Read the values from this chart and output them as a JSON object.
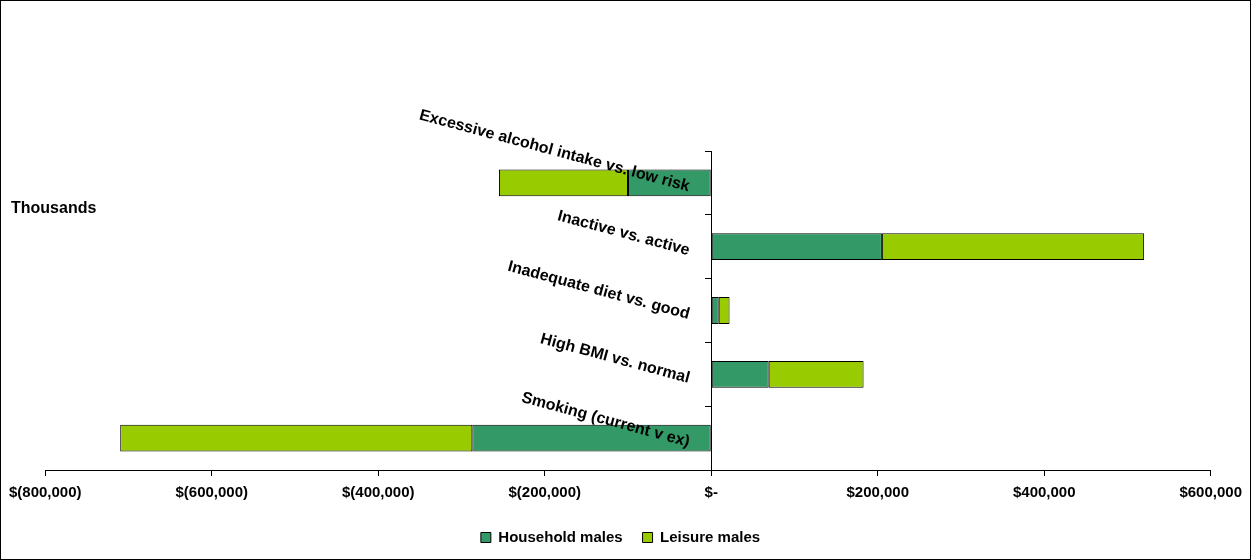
{
  "chart_data": {
    "type": "bar",
    "orientation": "horizontal",
    "stacked": true,
    "categories": [
      "Excessive alcohol intake vs. low risk",
      "Inactive vs. active",
      "Inadequate diet vs. good",
      "High BMI vs. normal",
      "Smoking (current v ex)"
    ],
    "series": [
      {
        "name": "Household males",
        "color": "#339966",
        "values": [
          -100000,
          205000,
          9000,
          69000,
          -287000
        ]
      },
      {
        "name": "Leisure males",
        "color": "#99cc00",
        "values": [
          -155000,
          315000,
          13000,
          114000,
          -423000
        ]
      }
    ],
    "xlim": [
      -800000,
      600000
    ],
    "xticks": [
      {
        "value": -800000,
        "label": "$(800,000)"
      },
      {
        "value": -600000,
        "label": "$(600,000)"
      },
      {
        "value": -400000,
        "label": "$(400,000)"
      },
      {
        "value": -200000,
        "label": "$(200,000)"
      },
      {
        "value": 0,
        "label": "$-"
      },
      {
        "value": 200000,
        "label": "$200,000"
      },
      {
        "value": 400000,
        "label": "$400,000"
      },
      {
        "value": 600000,
        "label": "$600,000"
      }
    ],
    "annotations": [
      "Thousands"
    ],
    "legend": "bottom",
    "grid": false
  }
}
